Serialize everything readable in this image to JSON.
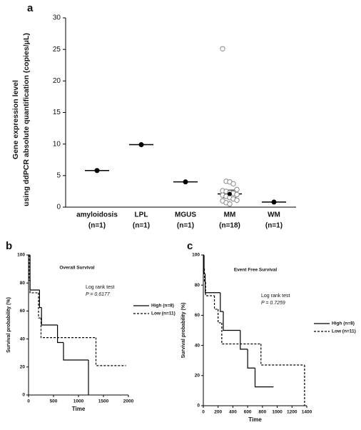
{
  "chart_data": [
    {
      "type": "dot",
      "panel_label": "a",
      "ylabel": [
        "Gene expression level",
        "using ddPCR absolute quantification (copies/μL)"
      ],
      "categories": [
        "amyloidosis",
        "LPL",
        "MGUS",
        "MM",
        "WM"
      ],
      "category_notes": [
        "(n=1)",
        "(n=1)",
        "(n=1)",
        "(n=18)",
        "(n=1)"
      ],
      "values": [
        [
          5.8
        ],
        [
          9.9
        ],
        [
          4.0
        ],
        [
          25.1,
          4.1,
          4.0,
          3.7,
          2.8,
          2.6,
          2.5,
          2.3,
          2.2,
          2.0,
          1.9,
          1.7,
          1.5,
          1.3,
          1.1,
          1.0,
          0.7,
          0.5
        ],
        [
          0.8
        ]
      ],
      "means": [
        5.8,
        9.9,
        4.0,
        2.1,
        0.8
      ],
      "errors": [
        null,
        null,
        null,
        0.6,
        null
      ],
      "ylim": [
        0,
        30
      ],
      "yticks": [
        0,
        5,
        10,
        15,
        20,
        25,
        30
      ],
      "color": "#000000"
    },
    {
      "type": "km",
      "panel_label": "b",
      "title": "Overall Survival",
      "xlabel": "Time",
      "ylabel": "Survival probability (%)",
      "annotation": [
        "Log rank test",
        "P = 0.6177"
      ],
      "legend": "right",
      "xlim": [
        0,
        2000
      ],
      "xticks": [
        0,
        500,
        1000,
        1500,
        2000
      ],
      "ylim": [
        0,
        100
      ],
      "yticks": [
        0,
        20,
        40,
        60,
        80,
        100
      ],
      "series": [
        {
          "name": "High (n=8)",
          "color": "#000000",
          "linestyle": "solid",
          "x": [
            0,
            30,
            220,
            260,
            580,
            700,
            1200
          ],
          "values": [
            100,
            75,
            62.5,
            50,
            37.5,
            25,
            0
          ]
        },
        {
          "name": "Low (n=11)",
          "color": "#000000",
          "linestyle": "dashed",
          "x": [
            0,
            10,
            30,
            200,
            250,
            1350,
            1950
          ],
          "values": [
            100,
            82,
            73,
            55,
            41,
            21,
            21
          ]
        }
      ]
    },
    {
      "type": "km",
      "panel_label": "c",
      "title": "Event Free Survival",
      "xlabel": "Time",
      "ylabel": "Survival probability (%)",
      "annotation": [
        "Log rank test",
        "P = 0.7259"
      ],
      "legend": "right",
      "xlim": [
        0,
        1400
      ],
      "xticks": [
        0,
        200,
        400,
        600,
        800,
        1000,
        1200,
        1400
      ],
      "ylim": [
        0,
        100
      ],
      "yticks": [
        0,
        20,
        40,
        60,
        80,
        100
      ],
      "series": [
        {
          "name": "High (n=8)",
          "color": "#000000",
          "linestyle": "solid",
          "x": [
            0,
            10,
            25,
            230,
            270,
            500,
            600,
            700,
            950
          ],
          "values": [
            100,
            87.5,
            75,
            62.5,
            50,
            37.5,
            25,
            12.5,
            12.5
          ]
        },
        {
          "name": "Low (n=11)",
          "color": "#000000",
          "linestyle": "dashed",
          "x": [
            0,
            5,
            15,
            30,
            150,
            200,
            250,
            780,
            1370
          ],
          "values": [
            100,
            91,
            82,
            73,
            64,
            55,
            41,
            27,
            0
          ]
        }
      ]
    }
  ]
}
